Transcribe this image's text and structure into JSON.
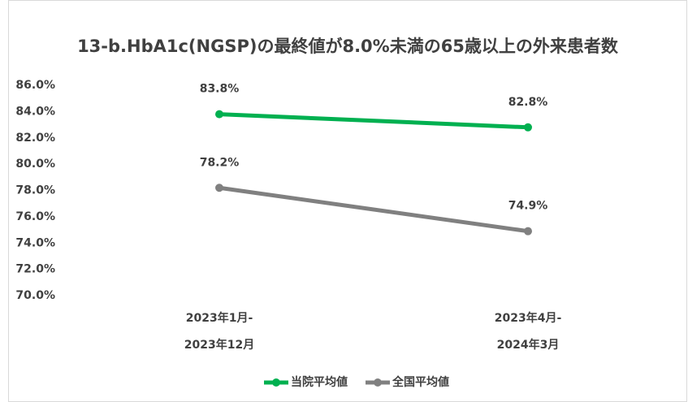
{
  "chart_data": {
    "type": "line",
    "title": "13-b.HbA1c(NGSP)の最終値が8.0%未満の65歳以上の外来患者数",
    "categories": [
      [
        "2023年1月-",
        "2023年12月"
      ],
      [
        "2023年4月-",
        "2024年3月"
      ]
    ],
    "series": [
      {
        "name": "当院平均値",
        "color": "#00b050",
        "values": [
          83.8,
          82.8
        ],
        "value_labels": [
          "83.8%",
          "82.8%"
        ]
      },
      {
        "name": "全国平均値",
        "color": "#808080",
        "values": [
          78.2,
          74.9
        ],
        "value_labels": [
          "78.2%",
          "74.9%"
        ]
      }
    ],
    "ylim": [
      70,
      86
    ],
    "yticks": [
      {
        "value": 70,
        "label": "70.0%"
      },
      {
        "value": 72,
        "label": "72.0%"
      },
      {
        "value": 74,
        "label": "74.0%"
      },
      {
        "value": 76,
        "label": "76.0%"
      },
      {
        "value": 78,
        "label": "78.0%"
      },
      {
        "value": 80,
        "label": "80.0%"
      },
      {
        "value": 82,
        "label": "82.0%"
      },
      {
        "value": 84,
        "label": "84.0%"
      },
      {
        "value": 86,
        "label": "86.0%"
      }
    ],
    "grid": false,
    "legend": "bottom"
  }
}
